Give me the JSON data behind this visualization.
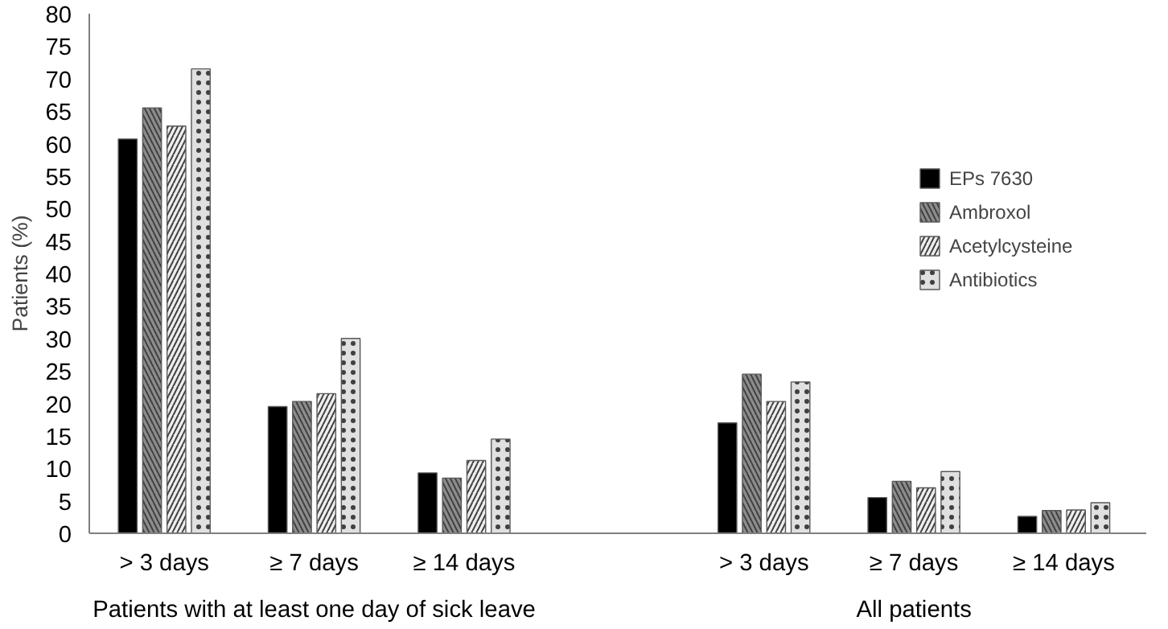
{
  "chart_data": {
    "type": "bar",
    "ylabel": "Patients (%)",
    "categories": [
      "> 3 days",
      "≥ 7 days",
      "≥ 14 days",
      null,
      "> 3 days",
      "≥ 7 days",
      "≥ 14 days"
    ],
    "series": [
      {
        "name": "EPs 7630",
        "color": "#000000",
        "values": [
          60.7,
          19.5,
          9.3,
          null,
          17.0,
          5.5,
          2.6
        ]
      },
      {
        "name": "Ambroxol",
        "color": "#8c8c8c",
        "values": [
          65.5,
          20.3,
          8.5,
          null,
          24.5,
          8.0,
          3.5
        ]
      },
      {
        "name": "Acetylcysteine",
        "color": "#eeeeee",
        "values": [
          62.7,
          21.5,
          11.2,
          null,
          20.3,
          7.0,
          3.6
        ]
      },
      {
        "name": "Antibiotics",
        "color": "#e0e0e0",
        "values": [
          71.5,
          30.0,
          14.5,
          null,
          23.3,
          9.5,
          4.7
        ]
      }
    ],
    "ylim": [
      0,
      80
    ],
    "yticks": [
      0,
      5,
      10,
      15,
      20,
      25,
      30,
      35,
      40,
      45,
      50,
      55,
      60,
      65,
      70,
      75,
      80
    ],
    "grid": false,
    "legend": "right",
    "annotations": [
      "Patients with at least one day of sick leave",
      "All patients"
    ]
  }
}
